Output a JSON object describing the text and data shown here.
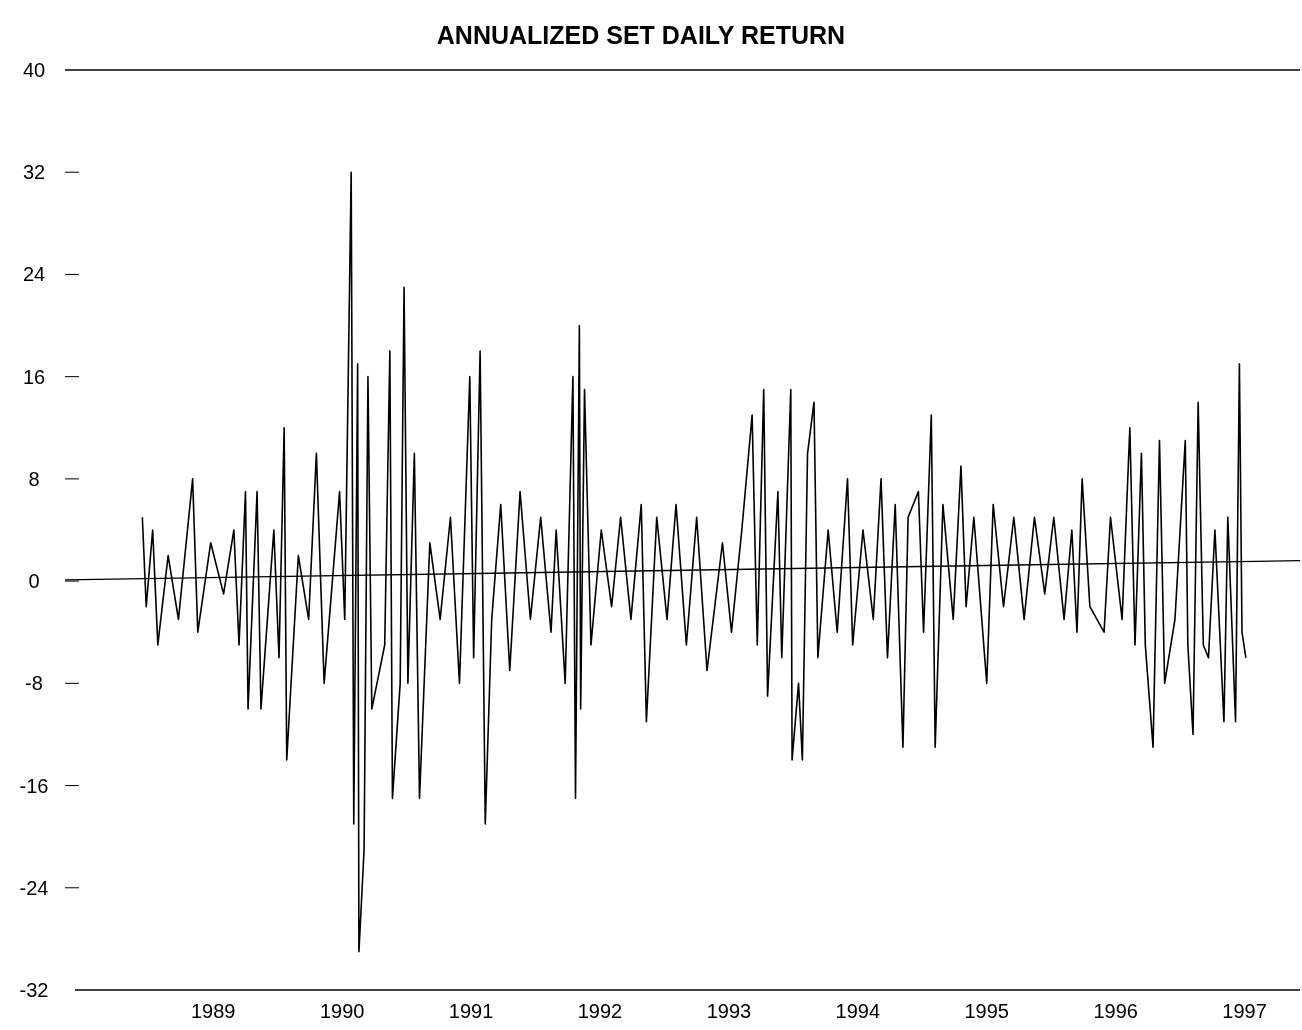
{
  "chart_data": {
    "type": "line",
    "title": "ANNUALIZED SET DAILY RETURN",
    "xlim": [
      1987.85,
      1997.43
    ],
    "xticks": [
      1989,
      1990,
      1991,
      1992,
      1993,
      1994,
      1995,
      1996,
      1997
    ],
    "ylim": [
      -32,
      40
    ],
    "yticks": [
      -32,
      -24,
      -16,
      -8,
      0,
      8,
      16,
      24,
      32,
      40
    ],
    "grid": false,
    "marker": "none",
    "line_style": "solid",
    "series": [
      {
        "color": "#000000",
        "x": [
          1988.45,
          1988.48,
          1988.53,
          1988.57,
          1988.65,
          1988.73,
          1988.84,
          1988.88,
          1988.98,
          1989.08,
          1989.16,
          1989.2,
          1989.25,
          1989.27,
          1989.34,
          1989.37,
          1989.47,
          1989.51,
          1989.55,
          1989.57,
          1989.66,
          1989.74,
          1989.8,
          1989.86,
          1989.98,
          1990.02,
          1990.07,
          1990.09,
          1990.12,
          1990.13,
          1990.17,
          1990.2,
          1990.23,
          1990.33,
          1990.37,
          1990.39,
          1990.45,
          1990.48,
          1990.51,
          1990.56,
          1990.6,
          1990.68,
          1990.76,
          1990.84,
          1990.91,
          1990.99,
          1991.02,
          1991.07,
          1991.11,
          1991.16,
          1991.23,
          1991.3,
          1991.38,
          1991.46,
          1991.54,
          1991.62,
          1991.66,
          1991.73,
          1991.79,
          1991.81,
          1991.84,
          1991.85,
          1991.88,
          1991.93,
          1992.01,
          1992.09,
          1992.16,
          1992.24,
          1992.32,
          1992.36,
          1992.44,
          1992.52,
          1992.59,
          1992.67,
          1992.75,
          1992.83,
          1992.95,
          1993.02,
          1993.1,
          1993.18,
          1993.22,
          1993.27,
          1993.3,
          1993.38,
          1993.41,
          1993.48,
          1993.49,
          1993.54,
          1993.57,
          1993.61,
          1993.66,
          1993.69,
          1993.77,
          1993.84,
          1993.92,
          1993.96,
          1994.04,
          1994.12,
          1994.18,
          1994.23,
          1994.29,
          1994.35,
          1994.39,
          1994.47,
          1994.51,
          1994.57,
          1994.6,
          1994.66,
          1994.74,
          1994.8,
          1994.84,
          1994.9,
          1995.0,
          1995.05,
          1995.13,
          1995.21,
          1995.29,
          1995.37,
          1995.45,
          1995.52,
          1995.6,
          1995.66,
          1995.7,
          1995.74,
          1995.8,
          1995.91,
          1995.96,
          1996.05,
          1996.11,
          1996.15,
          1996.2,
          1996.23,
          1996.29,
          1996.34,
          1996.38,
          1996.46,
          1996.54,
          1996.56,
          1996.6,
          1996.64,
          1996.68,
          1996.72,
          1996.77,
          1996.84,
          1996.87,
          1996.93,
          1996.96,
          1996.98,
          1997.01
        ],
        "values": [
          5,
          -2,
          4,
          -5,
          2,
          -3,
          8,
          -4,
          3,
          -1,
          4,
          -5,
          7,
          -10,
          7,
          -10,
          4,
          -6,
          12,
          -14,
          2,
          -3,
          10,
          -8,
          7,
          -3,
          32,
          -19,
          17,
          -29,
          -21,
          16,
          -10,
          -5,
          18,
          -17,
          -8,
          23,
          -8,
          10,
          -17,
          3,
          -3,
          5,
          -8,
          16,
          -6,
          18,
          -19,
          -3,
          6,
          -7,
          7,
          -3,
          5,
          -4,
          4,
          -8,
          16,
          -17,
          20,
          -10,
          15,
          -5,
          4,
          -2,
          5,
          -3,
          6,
          -11,
          5,
          -3,
          6,
          -5,
          5,
          -7,
          3,
          -4,
          4,
          13,
          -5,
          15,
          -9,
          7,
          -6,
          15,
          -14,
          -8,
          -14,
          10,
          14,
          -6,
          4,
          -4,
          8,
          -5,
          4,
          -3,
          8,
          -6,
          6,
          -13,
          5,
          7,
          -4,
          13,
          -13,
          6,
          -3,
          9,
          -2,
          5,
          -8,
          6,
          -2,
          5,
          -3,
          5,
          -1,
          5,
          -3,
          4,
          -4,
          8,
          -2,
          -4,
          5,
          -3,
          12,
          -5,
          10,
          -5,
          -13,
          11,
          -8,
          -3,
          11,
          -5,
          -12,
          14,
          -5,
          -6,
          4,
          -11,
          5,
          -11,
          17,
          -4,
          -6
        ]
      },
      {
        "color": "#000000",
        "x": [
          1987.85,
          1997.43
        ],
        "values": [
          0.1,
          1.6
        ]
      }
    ]
  }
}
